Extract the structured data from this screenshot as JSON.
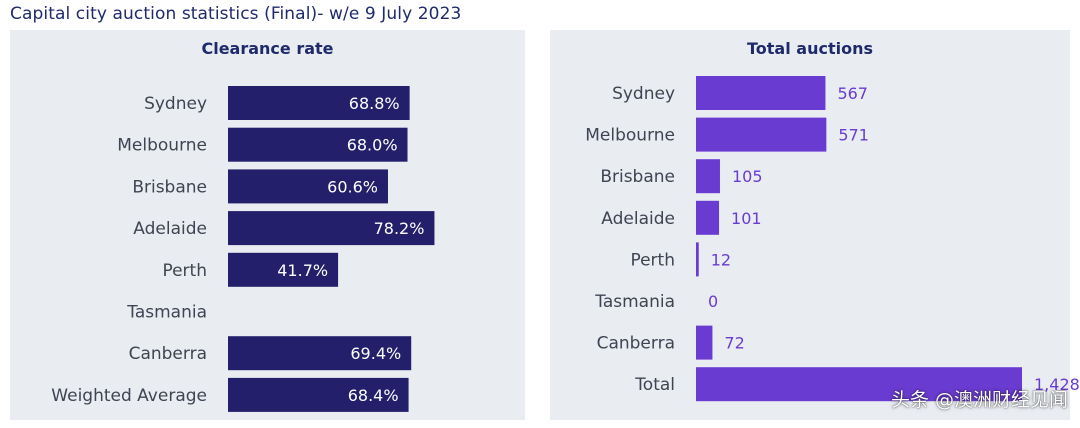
{
  "page": {
    "title": "Capital city auction statistics (Final)- w/e 9 July 2023",
    "watermark": "头条 @澳洲财经见闻"
  },
  "chart_data": [
    {
      "type": "bar",
      "orientation": "horizontal",
      "title": "Clearance rate",
      "categories": [
        "Sydney",
        "Melbourne",
        "Brisbane",
        "Adelaide",
        "Perth",
        "Tasmania",
        "Canberra",
        "Weighted Average"
      ],
      "values": [
        68.8,
        68.0,
        60.6,
        78.2,
        41.7,
        null,
        69.4,
        68.4
      ],
      "value_labels": [
        "68.8%",
        "68.0%",
        "60.6%",
        "78.2%",
        "41.7%",
        "",
        "69.4%",
        "68.4%"
      ],
      "unit": "%",
      "xlim": [
        0,
        100
      ],
      "grid": false,
      "colors": {
        "bar": "#231f6b",
        "label": "#ffffff",
        "background": "#e9edf2"
      }
    },
    {
      "type": "bar",
      "orientation": "horizontal",
      "title": "Total auctions",
      "categories": [
        "Sydney",
        "Melbourne",
        "Brisbane",
        "Adelaide",
        "Perth",
        "Tasmania",
        "Canberra",
        "Total"
      ],
      "values": [
        567,
        571,
        105,
        101,
        12,
        0,
        72,
        1428
      ],
      "value_labels": [
        "567",
        "571",
        "105",
        "101",
        "12",
        "0",
        "72",
        "1,428"
      ],
      "xlim": [
        0,
        1428
      ],
      "grid": false,
      "colors": {
        "bar": "#6a3bd0",
        "label": "#6a3bd0",
        "background": "#e9edf2"
      }
    }
  ]
}
